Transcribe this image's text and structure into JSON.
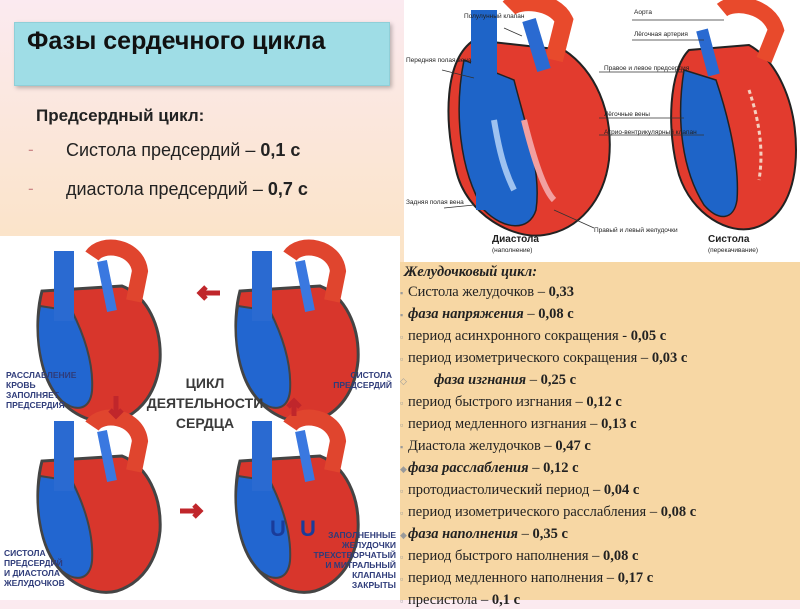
{
  "title": "Фазы сердечного цикла",
  "atrial": {
    "heading": "Предсердный цикл:",
    "items": [
      {
        "text": "Систола предсердий – ",
        "value": "0,1 с"
      },
      {
        "text": "диастола предсердий – ",
        "value": "0,7 с"
      }
    ]
  },
  "top_diagram": {
    "labels": {
      "left_top": "Полулунный клапан",
      "aorta": "Аорта",
      "pulmonary": "Лёгочная артерия",
      "ant_vena": "Передняя полая вена",
      "atria": "Правое и левое предсердия",
      "pulm_veins": "Лёгочные вены",
      "av_valve": "Атрио-вентрикулярный клапан",
      "post_vena": "Задняя полая вена",
      "ventricles": "Правый и левый желудочки",
      "diastole": "Диастола",
      "diastole_sub": "(наполнение)",
      "systole": "Систола",
      "systole_sub": "(перекачивание)"
    }
  },
  "cycle_diagram": {
    "center": [
      "ЦИКЛ",
      "ДЕЯТЕЛЬНОСТИ",
      "СЕРДЦА"
    ],
    "top_left": [
      "РАССЛАБЛЕНИЕ",
      "КРОВЬ",
      "ЗАПОЛНЯЕТ",
      "ПРЕДСЕРДИЯ"
    ],
    "top_right": [
      "СИСТОЛА",
      "ПРЕДСЕРДИЙ"
    ],
    "bottom_left": [
      "СИСТОЛА",
      "ПРЕДСЕРДИЙ",
      "И ДИАСТОЛА",
      "ЖЕЛУДОЧКОВ"
    ],
    "bottom_right": [
      "ЗАПОЛНЕННЫЕ",
      "ЖЕЛУДОЧКИ",
      "ТРЕХСТВОРЧАТЫЙ",
      "И МИТРАЛЬНЫЙ",
      "КЛАПАНЫ",
      "ЗАКРЫТЫ"
    ],
    "valve_letters": "U"
  },
  "ventricular": {
    "heading": "Желудочковый цикл:",
    "rows": [
      {
        "style": "plain",
        "text": "Систола желудочков – ",
        "value": "0,33"
      },
      {
        "style": "italic",
        "text": "фаза напряжения",
        "tail": " – ",
        "value": "0,08 с"
      },
      {
        "style": "plain",
        "text": "период асинхронного сокращения - ",
        "value": "0,05 с"
      },
      {
        "style": "plain",
        "text": "период изометрического сокращения – ",
        "value": "0,03 с"
      },
      {
        "style": "italic-indent",
        "text": "фаза изгнания",
        "tail": " – ",
        "value": "0,25 с"
      },
      {
        "style": "plain",
        "text": "период быстрого изгнания – ",
        "value": "0,12 с"
      },
      {
        "style": "plain",
        "text": "период медленного изгнания – ",
        "value": "0,13 с"
      },
      {
        "style": "plain",
        "text": "Диастола желудочков – ",
        "value": "0,47 с"
      },
      {
        "style": "italic",
        "text": "фаза расслабления",
        "tail": " – ",
        "value": "0,12 с"
      },
      {
        "style": "plain",
        "text": "протодиастолический период – ",
        "value": "0,04 с"
      },
      {
        "style": "plain",
        "text": "период изометрического расслабления – ",
        "value": "0,08 с"
      },
      {
        "style": "italic",
        "text": "фаза наполнения",
        "tail": " – ",
        "value": "0,35 с"
      },
      {
        "style": "plain",
        "text": "период быстрого наполнения – ",
        "value": "0,08 с"
      },
      {
        "style": "plain",
        "text": "период медленного наполнения – ",
        "value": "0,17 с"
      },
      {
        "style": "plain",
        "text": "пресистола – ",
        "value": "0,1 с"
      }
    ]
  }
}
